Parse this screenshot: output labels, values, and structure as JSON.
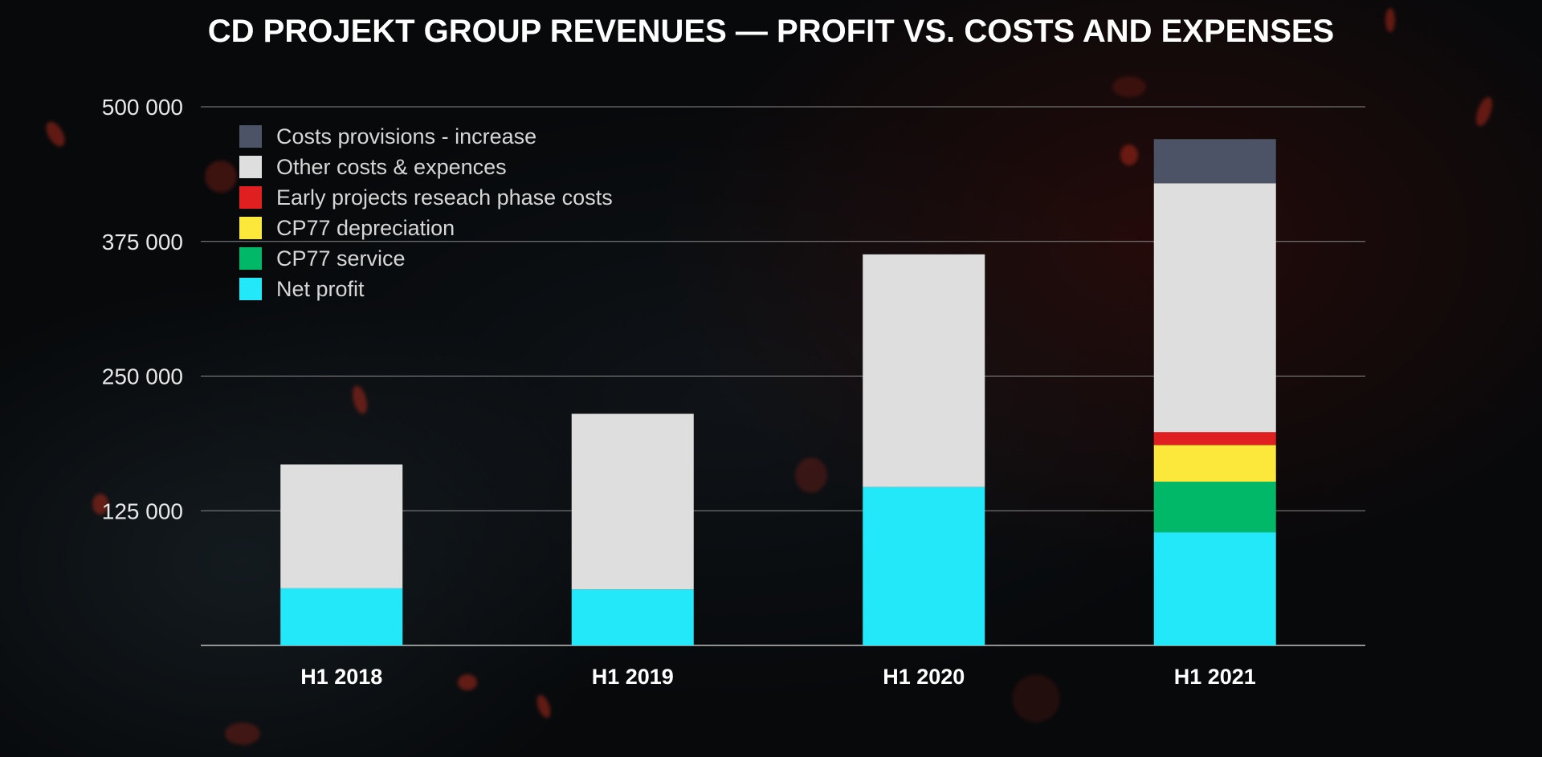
{
  "chart_data": {
    "type": "bar",
    "stacked": true,
    "title": "CD PROJEKT GROUP REVENUES — PROFIT VS. COSTS AND EXPENSES",
    "xlabel": "",
    "ylabel": "",
    "ylim": [
      0,
      500000
    ],
    "y_ticks": [
      {
        "value": 125000,
        "label": "125 000"
      },
      {
        "value": 250000,
        "label": "250 000"
      },
      {
        "value": 375000,
        "label": "375 000"
      },
      {
        "value": 500000,
        "label": "500 000"
      }
    ],
    "grid": true,
    "legend_position": "top-left",
    "categories": [
      "H1 2018",
      "H1 2019",
      "H1 2020",
      "H1 2021"
    ],
    "series": [
      {
        "name": "Net profit",
        "color": "#22E8FA",
        "values": [
          53000,
          52000,
          147000,
          105000
        ]
      },
      {
        "name": "CP77 service",
        "color": "#00B868",
        "values": [
          0,
          0,
          0,
          47000
        ]
      },
      {
        "name": "CP77 depreciation",
        "color": "#FCE83A",
        "values": [
          0,
          0,
          0,
          34000
        ]
      },
      {
        "name": "Early projects reseach phase costs",
        "color": "#E02020",
        "values": [
          0,
          0,
          0,
          12000
        ]
      },
      {
        "name": "Other costs & expences",
        "color": "#DEDEDE",
        "values": [
          115000,
          163000,
          216000,
          231000
        ]
      },
      {
        "name": "Costs provisions - increase",
        "color": "#4C5366",
        "values": [
          0,
          0,
          0,
          41000
        ]
      }
    ],
    "legend_order": [
      "Costs provisions - increase",
      "Other costs & expences",
      "Early projects reseach phase costs",
      "CP77 depreciation",
      "CP77 service",
      "Net profit"
    ]
  }
}
